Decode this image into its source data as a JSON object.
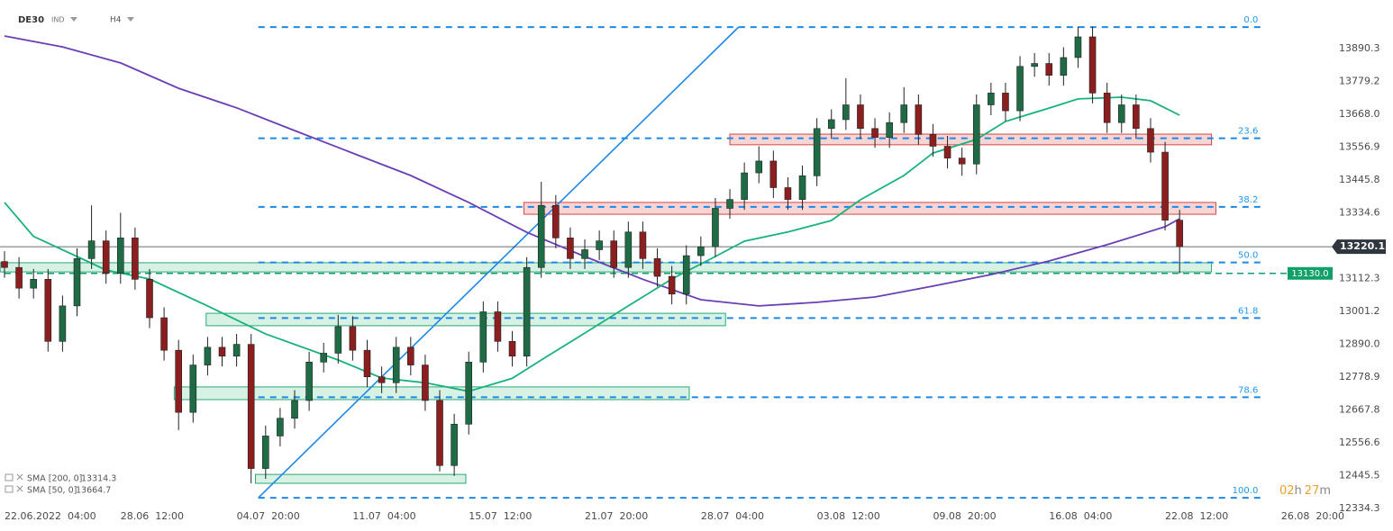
{
  "header": {
    "symbol": "DE30",
    "market": "IND",
    "interval": "H4"
  },
  "countdown": {
    "hours": "02",
    "hours_unit": "h",
    "minutes": "27",
    "minutes_unit": "m"
  },
  "chart_data": {
    "type": "candlestick",
    "up_color": "#1e6b45",
    "down_color": "#8b1e1e",
    "wick_color": "#222222",
    "x": [
      0,
      1,
      2,
      3,
      4,
      5,
      6,
      7,
      8,
      9,
      10,
      11,
      12,
      13,
      14,
      15,
      16,
      17,
      18,
      19,
      20,
      21,
      22,
      23,
      24,
      25,
      26,
      27,
      28,
      29,
      30,
      31,
      32,
      33,
      34,
      35,
      36,
      37,
      38,
      39,
      40,
      41,
      42,
      43,
      44,
      45,
      46,
      47,
      48,
      49,
      50,
      51,
      52,
      53,
      54,
      55,
      56,
      57,
      58,
      59,
      60,
      61,
      62,
      63,
      64,
      65,
      66,
      67,
      68,
      69,
      70,
      71,
      72,
      73,
      74,
      75,
      76,
      77,
      78,
      79,
      80,
      81
    ],
    "open": [
      13170,
      13150,
      13080,
      13110,
      12900,
      13020,
      13180,
      13240,
      13130,
      13250,
      13110,
      12980,
      12870,
      12660,
      12820,
      12880,
      12850,
      12890,
      12470,
      12580,
      12640,
      12700,
      12830,
      12860,
      12950,
      12870,
      12780,
      12760,
      12880,
      12820,
      12700,
      12480,
      12620,
      12830,
      13000,
      12900,
      12850,
      13150,
      13360,
      13250,
      13180,
      13210,
      13240,
      13150,
      13270,
      13180,
      13120,
      13060,
      13190,
      13220,
      13350,
      13380,
      13470,
      13510,
      13420,
      13380,
      13460,
      13620,
      13650,
      13700,
      13620,
      13590,
      13640,
      13700,
      13600,
      13560,
      13520,
      13500,
      13700,
      13740,
      13680,
      13830,
      13840,
      13800,
      13860,
      13930,
      13740,
      13640,
      13700,
      13620,
      13540,
      13310
    ],
    "high": [
      13205,
      13185,
      13145,
      13145,
      13055,
      13215,
      13360,
      13275,
      13335,
      13285,
      13145,
      13015,
      12905,
      12855,
      12915,
      12915,
      12925,
      12925,
      12615,
      12675,
      12735,
      12865,
      12895,
      12990,
      12985,
      12905,
      12815,
      12915,
      12915,
      12855,
      12735,
      12655,
      12865,
      13035,
      13035,
      12935,
      13185,
      13440,
      13395,
      13285,
      13245,
      13275,
      13275,
      13305,
      13305,
      13215,
      13155,
      13225,
      13255,
      13385,
      13415,
      13505,
      13560,
      13545,
      13455,
      13495,
      13655,
      13685,
      13790,
      13735,
      13655,
      13675,
      13760,
      13735,
      13635,
      13595,
      13555,
      13735,
      13775,
      13775,
      13865,
      13875,
      13875,
      13895,
      13965,
      13965,
      13775,
      13735,
      13735,
      13655,
      13575,
      13345
    ],
    "low": [
      13115,
      13045,
      13045,
      12865,
      12865,
      12985,
      13145,
      13095,
      13095,
      13075,
      12945,
      12835,
      12600,
      12625,
      12785,
      12815,
      12815,
      12420,
      12435,
      12545,
      12605,
      12665,
      12795,
      12825,
      12835,
      12745,
      12725,
      12725,
      12785,
      12665,
      12460,
      12445,
      12585,
      12795,
      12865,
      12815,
      12815,
      13115,
      13215,
      13145,
      13145,
      13175,
      13115,
      13115,
      13145,
      13085,
      13025,
      13025,
      13155,
      13185,
      13315,
      13345,
      13435,
      13385,
      13345,
      13345,
      13425,
      13585,
      13615,
      13585,
      13555,
      13555,
      13605,
      13565,
      13525,
      13485,
      13460,
      13465,
      13665,
      13645,
      13645,
      13795,
      13765,
      13765,
      13825,
      13705,
      13605,
      13605,
      13585,
      13505,
      13275,
      13130
    ],
    "close": [
      13150,
      13080,
      13110,
      12900,
      13020,
      13180,
      13240,
      13130,
      13250,
      13110,
      12980,
      12870,
      12660,
      12820,
      12880,
      12850,
      12890,
      12470,
      12580,
      12640,
      12700,
      12830,
      12860,
      12950,
      12870,
      12780,
      12760,
      12880,
      12820,
      12700,
      12480,
      12620,
      12830,
      13000,
      12900,
      12850,
      13150,
      13360,
      13250,
      13180,
      13210,
      13240,
      13150,
      13270,
      13180,
      13120,
      13060,
      13190,
      13220,
      13350,
      13380,
      13470,
      13510,
      13420,
      13380,
      13460,
      13620,
      13650,
      13700,
      13620,
      13590,
      13640,
      13700,
      13600,
      13560,
      13520,
      13500,
      13700,
      13740,
      13680,
      13830,
      13840,
      13800,
      13860,
      13930,
      13740,
      13640,
      13700,
      13620,
      13540,
      13310,
      13220.1
    ],
    "xlim": [
      -0.31,
      91.3
    ],
    "xticks": [
      {
        "value": 0,
        "label": "22.06.2022  04:00"
      },
      {
        "value": 8,
        "label": "28.06  12:00"
      },
      {
        "value": 16,
        "label": "04.07  20:00"
      },
      {
        "value": 24,
        "label": "11.07  04:00"
      },
      {
        "value": 32,
        "label": "15.07  12:00"
      },
      {
        "value": 40,
        "label": "21.07  20:00"
      },
      {
        "value": 48,
        "label": "28.07  04:00"
      },
      {
        "value": 56,
        "label": "03.08  12:00"
      },
      {
        "value": 64,
        "label": "09.08  20:00"
      },
      {
        "value": 72,
        "label": "16.08  04:00"
      },
      {
        "value": 80,
        "label": "22.08  12:00"
      },
      {
        "value": 88,
        "label": "26.08  20:00"
      }
    ],
    "ylim": [
      12319.5,
      14054.7
    ],
    "yticks": [
      13890.3,
      13779.2,
      {
        "value": 13668,
        "label": "13668.0"
      },
      13556.9,
      13445.8,
      13334.6,
      13112.3,
      13001.2,
      {
        "value": 12890,
        "label": "12890.0"
      },
      12778.9,
      12667.8,
      12556.6,
      12445.5,
      12334.3
    ],
    "sma": [
      {
        "name": "SMA [200, 0]",
        "color": "#6a3fb5",
        "last": 13314.3,
        "x": [
          0,
          4,
          8,
          12,
          16,
          20,
          24,
          28,
          32,
          36,
          40,
          44,
          48,
          52,
          56,
          60,
          64,
          68,
          72,
          76,
          80,
          81
        ],
        "values": [
          13933,
          13896,
          13842,
          13756,
          13690,
          13613,
          13537,
          13461,
          13370,
          13269,
          13187,
          13110,
          13041,
          13020,
          13032,
          13050,
          13087,
          13126,
          13172,
          13227,
          13288,
          13315
        ]
      },
      {
        "name": "SMA [50, 0]",
        "color": "#19b27b",
        "last": 13664.7,
        "x": [
          0,
          2,
          5,
          7,
          10,
          14,
          18,
          23,
          26,
          29,
          32,
          35,
          37,
          40,
          43,
          46,
          49,
          51,
          54,
          57,
          59,
          62,
          64,
          67,
          69,
          72,
          74,
          77,
          79,
          81
        ],
        "values": [
          13370,
          13255,
          13187,
          13141,
          13111,
          13020,
          12925,
          12837,
          12776,
          12760,
          12731,
          12775,
          12837,
          12928,
          13020,
          13111,
          13187,
          13239,
          13270,
          13309,
          13379,
          13461,
          13537,
          13583,
          13644,
          13689,
          13720,
          13726,
          13714,
          13665
        ]
      }
    ],
    "fib": {
      "color": "#1e88e5",
      "x": [
        17.5,
        86.6
      ],
      "levels": [
        {
          "label": "0.0",
          "price": 13963
        },
        {
          "label": "23.6",
          "price": 13587
        },
        {
          "label": "38.2",
          "price": 13355
        },
        {
          "label": "50.0",
          "price": 13167
        },
        {
          "label": "61.8",
          "price": 12979
        },
        {
          "label": "78.6",
          "price": 12711
        },
        {
          "label": "100.0",
          "price": 12371
        }
      ]
    },
    "trendline": {
      "color": "#1e88e5",
      "x": [
        17.5,
        50.6
      ],
      "y": [
        12371,
        13963
      ]
    },
    "zones": [
      {
        "fill": "#f4c7c7",
        "stroke": "#d64545",
        "x": [
          50,
          83.2
        ],
        "y": [
          13565,
          13601
        ]
      },
      {
        "fill": "#f4c7c7",
        "stroke": "#d64545",
        "x": [
          35.8,
          83.5
        ],
        "y": [
          13330,
          13370
        ]
      },
      {
        "fill": "#c9ecdc",
        "stroke": "#2aa876",
        "x": [
          -0.3,
          83.2
        ],
        "y": [
          13135,
          13166
        ]
      },
      {
        "fill": "#c9ecdc",
        "stroke": "#2aa876",
        "x": [
          13.9,
          49.7
        ],
        "y": [
          12953,
          12995
        ]
      },
      {
        "fill": "#c9ecdc",
        "stroke": "#2aa876",
        "x": [
          11.7,
          47.2
        ],
        "y": [
          12703,
          12746
        ]
      },
      {
        "fill": "#c9ecdc",
        "stroke": "#2aa876",
        "x": [
          17.3,
          31.8
        ],
        "y": [
          12420,
          12450
        ]
      }
    ],
    "last_price": 13220.1,
    "order_price": {
      "value": 13130,
      "label": "13130.0"
    },
    "order_color": "#12a06a"
  }
}
